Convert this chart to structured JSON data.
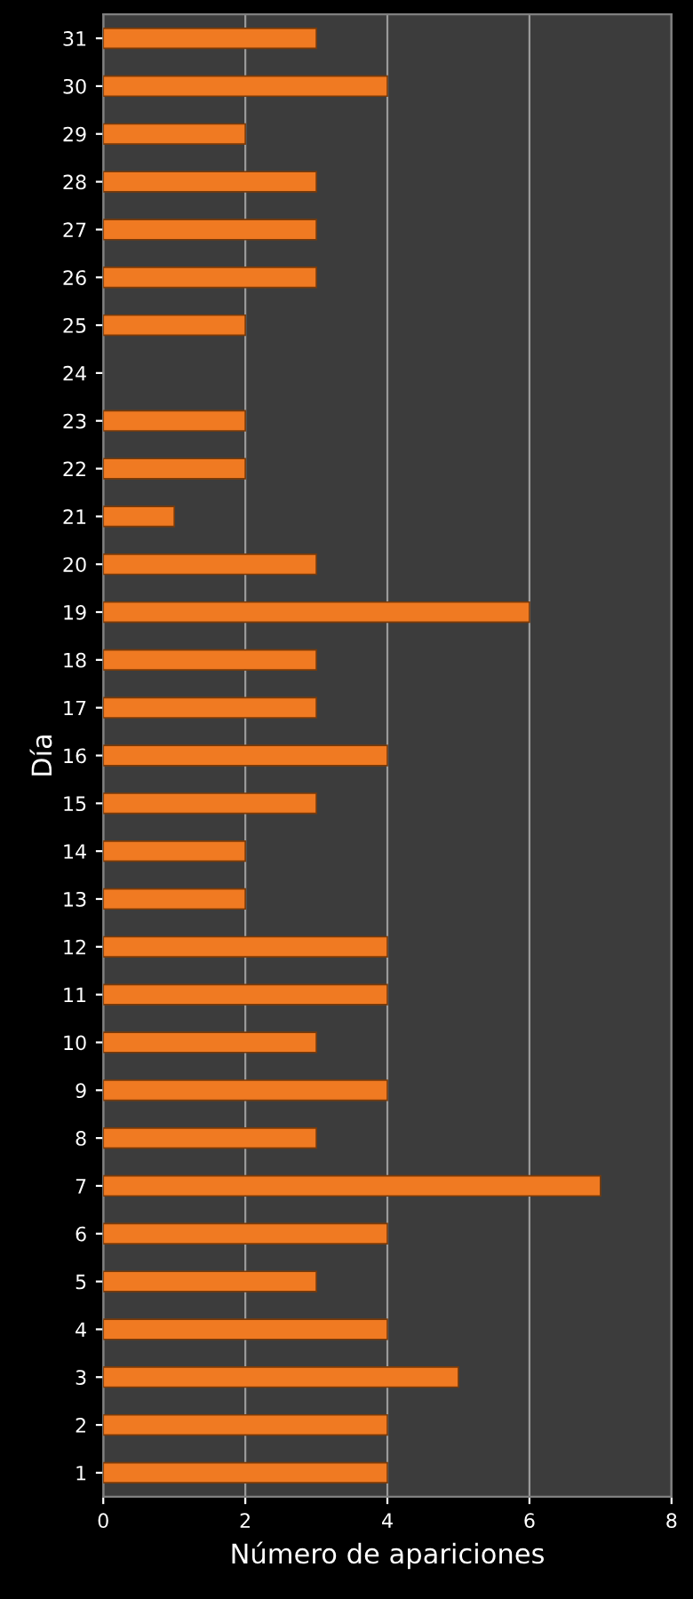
{
  "chart_data": {
    "type": "bar",
    "orientation": "horizontal",
    "xlabel": "Número de apariciones",
    "ylabel": "Día",
    "categories": [
      "31",
      "30",
      "29",
      "28",
      "27",
      "26",
      "25",
      "24",
      "23",
      "22",
      "21",
      "20",
      "19",
      "18",
      "17",
      "16",
      "15",
      "14",
      "13",
      "12",
      "11",
      "10",
      "9",
      "8",
      "7",
      "6",
      "5",
      "4",
      "3",
      "2",
      "1"
    ],
    "values": [
      3,
      4,
      2,
      3,
      3,
      3,
      2,
      0,
      2,
      2,
      1,
      3,
      6,
      3,
      3,
      4,
      3,
      2,
      2,
      4,
      4,
      3,
      4,
      3,
      7,
      4,
      3,
      4,
      5,
      4,
      4
    ],
    "color": "#f07a22",
    "xlim": [
      0,
      8
    ],
    "xticks": [
      0,
      2,
      4,
      6,
      8
    ],
    "grid": "x",
    "legend": false
  }
}
